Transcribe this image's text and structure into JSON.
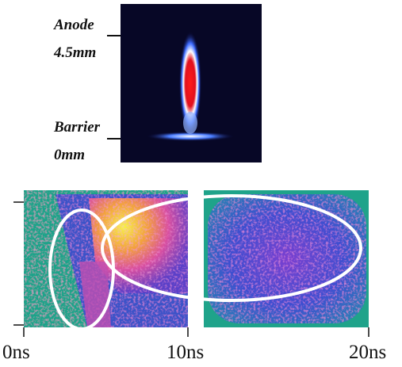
{
  "labels": {
    "anode": "Anode",
    "anode_position": "4.5mm",
    "barrier": "Barrier",
    "barrier_position": "0mm"
  },
  "time_axis": [
    "0ns",
    "10ns",
    "20ns"
  ]
}
